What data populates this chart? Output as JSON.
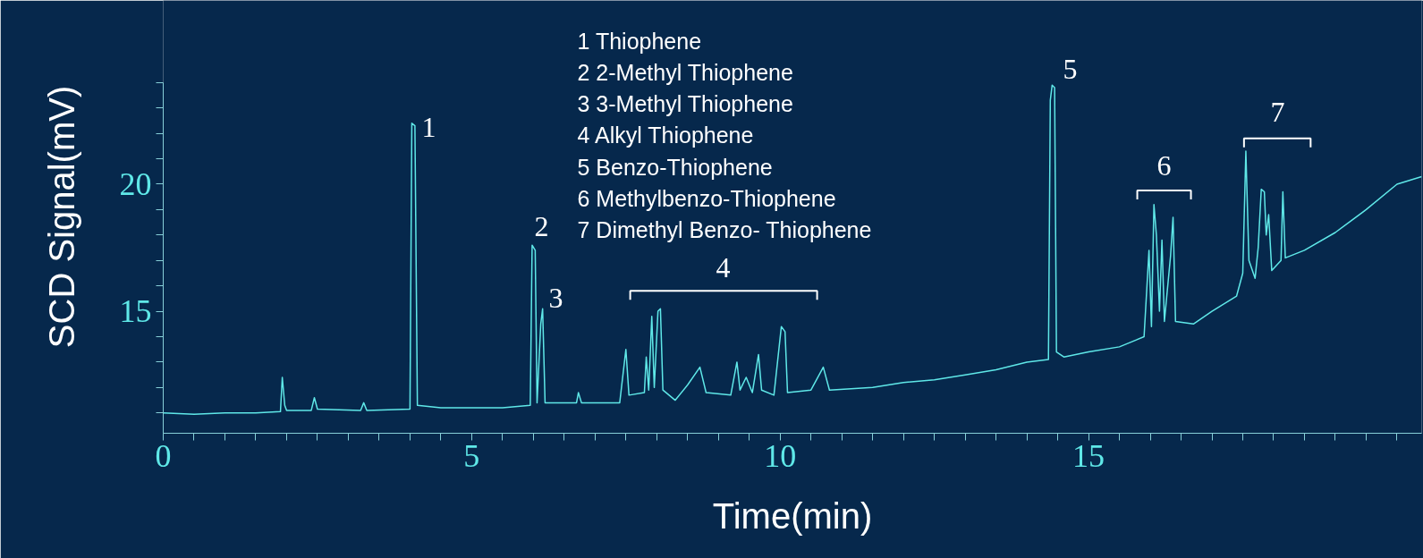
{
  "chart_data": {
    "type": "line",
    "xlabel": "Time(min)",
    "ylabel": "SCD Signal(mV)",
    "xlim": [
      0,
      20.4
    ],
    "ylim": [
      10.2,
      24
    ],
    "xticks": [
      0,
      {
        "value": 0.5,
        "label": null
      },
      {
        "value": 1,
        "label": null
      },
      {
        "value": 1.5,
        "label": null
      },
      {
        "value": 2,
        "label": null
      },
      {
        "value": 2.5,
        "label": null
      },
      {
        "value": 3,
        "label": null
      },
      {
        "value": 3.5,
        "label": null
      },
      {
        "value": 4,
        "label": null
      },
      {
        "value": 4.5,
        "label": null
      },
      5,
      {
        "value": 5.5,
        "label": null
      },
      {
        "value": 6,
        "label": null
      },
      {
        "value": 6.5,
        "label": null
      },
      {
        "value": 7,
        "label": null
      },
      {
        "value": 7.5,
        "label": null
      },
      {
        "value": 8,
        "label": null
      },
      {
        "value": 8.5,
        "label": null
      },
      {
        "value": 9,
        "label": null
      },
      {
        "value": 9.5,
        "label": null
      },
      10,
      {
        "value": 10.5,
        "label": null
      },
      {
        "value": 11,
        "label": null
      },
      {
        "value": 11.5,
        "label": null
      },
      {
        "value": 12,
        "label": null
      },
      {
        "value": 12.5,
        "label": null
      },
      {
        "value": 13,
        "label": null
      },
      {
        "value": 13.5,
        "label": null
      },
      {
        "value": 14,
        "label": null
      },
      {
        "value": 14.5,
        "label": null
      },
      15,
      {
        "value": 15.5,
        "label": null
      },
      {
        "value": 16,
        "label": null
      },
      {
        "value": 16.5,
        "label": null
      },
      {
        "value": 17,
        "label": null
      },
      {
        "value": 17.5,
        "label": null
      },
      {
        "value": 18,
        "label": null
      },
      {
        "value": 18.5,
        "label": null
      },
      {
        "value": 19,
        "label": null
      },
      {
        "value": 19.5,
        "label": null
      },
      {
        "value": 20,
        "label": null
      }
    ],
    "yticks": [
      {
        "value": 11,
        "label": null
      },
      {
        "value": 12,
        "label": null
      },
      {
        "value": 13,
        "label": null
      },
      {
        "value": 14,
        "label": null
      },
      15,
      {
        "value": 16,
        "label": null
      },
      {
        "value": 17,
        "label": null
      },
      {
        "value": 18,
        "label": null
      },
      {
        "value": 19,
        "label": null
      },
      20,
      {
        "value": 21,
        "label": null
      },
      {
        "value": 22,
        "label": null
      },
      {
        "value": 23,
        "label": null
      },
      {
        "value": 24,
        "label": null
      }
    ],
    "grid": false,
    "x": [
      0,
      0.5,
      1.0,
      1.5,
      1.9,
      1.93,
      1.97,
      2.0,
      2.4,
      2.45,
      2.5,
      3.2,
      3.25,
      3.3,
      4.0,
      4.03,
      4.08,
      4.12,
      4.5,
      5.0,
      5.5,
      5.95,
      5.98,
      6.03,
      6.06,
      6.12,
      6.15,
      6.19,
      6.7,
      6.73,
      6.78,
      7.4,
      7.5,
      7.55,
      7.8,
      7.83,
      7.87,
      7.92,
      7.96,
      8.02,
      8.06,
      8.1,
      8.3,
      8.5,
      8.7,
      8.8,
      9.2,
      9.3,
      9.35,
      9.45,
      9.55,
      9.65,
      9.7,
      9.9,
      10.02,
      10.08,
      10.12,
      10.5,
      10.7,
      10.8,
      11.5,
      12.0,
      12.5,
      13.0,
      13.5,
      14.0,
      14.35,
      14.38,
      14.41,
      14.45,
      14.48,
      14.6,
      15.0,
      15.5,
      15.9,
      15.98,
      16.02,
      16.06,
      16.1,
      16.15,
      16.19,
      16.23,
      16.33,
      16.37,
      16.41,
      16.7,
      17.0,
      17.4,
      17.5,
      17.55,
      17.6,
      17.7,
      17.75,
      17.8,
      17.85,
      17.88,
      17.92,
      17.97,
      18.12,
      18.15,
      18.19,
      18.5,
      19.0,
      19.5,
      20.0,
      20.4
    ],
    "series": [
      {
        "color": "#5fe8e8",
        "values": [
          11.0,
          10.95,
          11.0,
          11.0,
          11.05,
          12.4,
          11.3,
          11.1,
          11.1,
          11.6,
          11.15,
          11.1,
          11.4,
          11.1,
          11.15,
          22.4,
          22.3,
          11.3,
          11.2,
          11.2,
          11.2,
          11.3,
          17.6,
          17.4,
          11.4,
          14.5,
          15.1,
          11.4,
          11.4,
          11.8,
          11.4,
          11.4,
          13.5,
          11.7,
          11.8,
          13.2,
          11.9,
          14.8,
          12.0,
          15.0,
          15.1,
          11.9,
          11.5,
          12.1,
          12.8,
          11.8,
          11.7,
          13.0,
          11.9,
          12.4,
          11.8,
          13.3,
          11.9,
          11.7,
          14.4,
          14.2,
          11.8,
          11.9,
          12.8,
          11.9,
          12.0,
          12.2,
          12.3,
          12.5,
          12.7,
          13.0,
          13.1,
          23.3,
          23.9,
          23.8,
          13.4,
          13.2,
          13.4,
          13.6,
          14.0,
          17.4,
          14.4,
          19.2,
          18.0,
          15.0,
          17.8,
          14.6,
          17.2,
          18.7,
          14.6,
          14.5,
          15.0,
          15.6,
          16.5,
          21.3,
          17.0,
          16.3,
          17.5,
          19.8,
          19.7,
          18.0,
          18.8,
          16.6,
          17.0,
          19.7,
          17.1,
          17.4,
          18.1,
          19.0,
          20.0,
          20.3
        ]
      }
    ],
    "annotations": [
      "1 Thiophene",
      "2 2-Methyl Thiophene",
      "3 3-Methyl Thiophene",
      "4 Alkyl Thiophene",
      "5 Benzo-Thiophene",
      "6 Methylbenzo-Thiophene",
      "7 Dimethyl Benzo- Thiophene",
      "1",
      "2",
      "3",
      "4",
      "5",
      "6",
      "7"
    ]
  }
}
